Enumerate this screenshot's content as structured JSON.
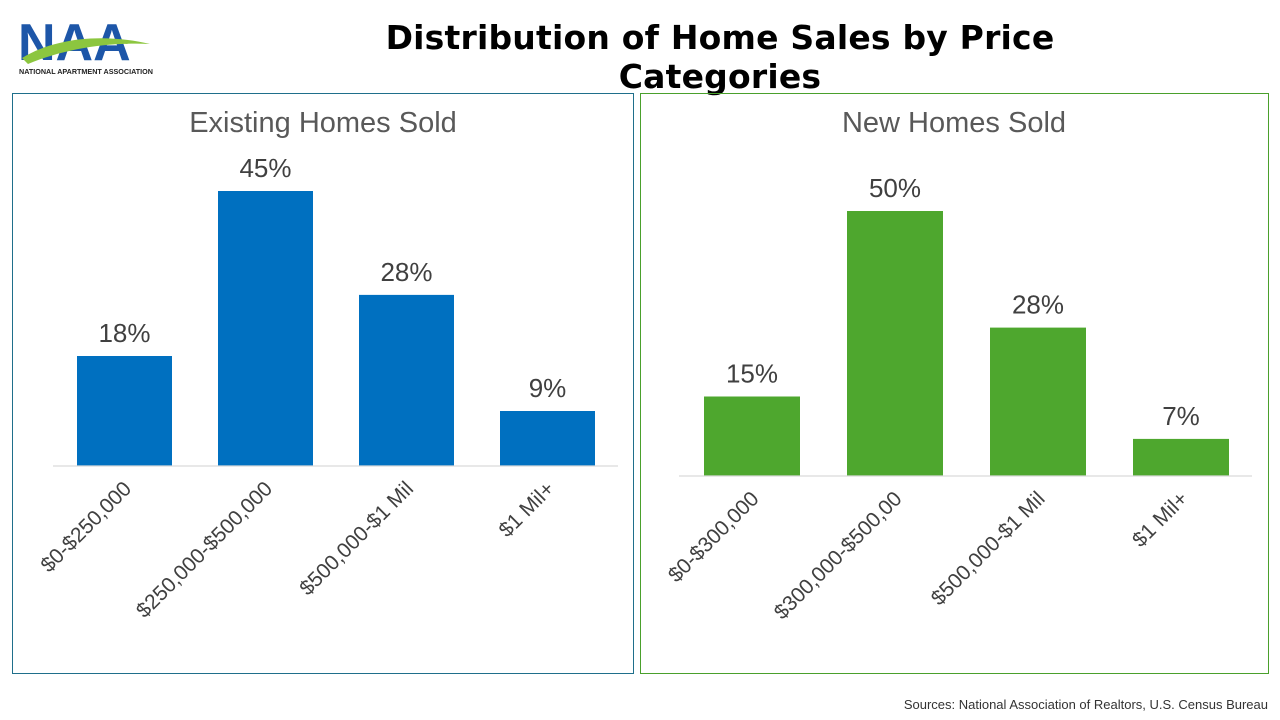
{
  "page": {
    "title": "Distribution of Home Sales by Price Categories",
    "source": "Sources: National Association of Realtors, U.S. Census Bureau"
  },
  "logo": {
    "text": "NAA",
    "subtext": "NATIONAL APARTMENT ASSOCIATION",
    "colors": {
      "letters": "#1d56a8",
      "swoosh": "#8cc63f"
    }
  },
  "chart_data": [
    {
      "type": "bar",
      "title": "Existing Homes Sold",
      "categories": [
        "$0-$250,000",
        "$250,000-$500,000",
        "$500,000-$1 Mil",
        "$1 Mil+"
      ],
      "values": [
        18,
        45,
        28,
        9
      ],
      "data_labels": [
        "18%",
        "45%",
        "28%",
        "9%"
      ],
      "unit": "%",
      "ylim": [
        0,
        45
      ],
      "grid": false,
      "legend": "none",
      "color": "#0070c0"
    },
    {
      "type": "bar",
      "title": "New Homes Sold",
      "categories": [
        "$0-$300,000",
        "$300,000-$500,00",
        "$500,000-$1 Mil",
        "$1 Mil+"
      ],
      "values": [
        15,
        50,
        28,
        7
      ],
      "data_labels": [
        "15%",
        "50%",
        "28%",
        "7%"
      ],
      "unit": "%",
      "ylim": [
        0,
        50
      ],
      "grid": false,
      "legend": "none",
      "color": "#4ea72e"
    }
  ]
}
